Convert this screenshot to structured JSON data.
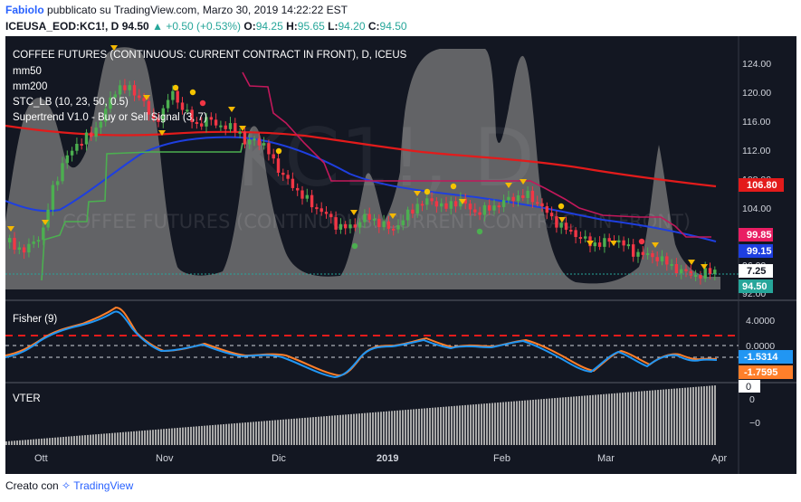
{
  "header": {
    "author": "Fabiolo",
    "published": "pubblicato su TradingView.com, Marzo 30, 2019 14:22:22 EST",
    "symbol": "ICEUSA_EOD:KC1!, D",
    "price": "94.50",
    "change": "+0.50 (+0.53%)",
    "o_label": "O:",
    "o_value": "94.25",
    "h_label": "H:",
    "h_value": "95.65",
    "l_label": "L:",
    "l_value": "94.20",
    "c_label": "C:",
    "c_value": "94.50"
  },
  "legend": {
    "title": "COFFEE FUTURES (CONTINUOUS: CURRENT CONTRACT IN FRONT), D, ICEUS",
    "items": [
      "mm50",
      "mm200",
      "STC_LB (10, 23, 50, 0.5)",
      "Supertrend V1.0 - Buy or Sell Signal (3, 7)"
    ]
  },
  "watermark": {
    "big": "KC1!, D",
    "small": "COFFEE FUTURES (CONTINUOUS: CURRENT CONTRACT IN FRONT)"
  },
  "price_axis": [
    "124.00",
    "120.00",
    "116.00",
    "112.00",
    "108.00",
    "104.00",
    "96.00",
    "92.00"
  ],
  "price_tags": [
    {
      "text": "106.80",
      "bg": "#e31b1b",
      "color": "#ffffff"
    },
    {
      "text": "99.85",
      "bg": "#e91e63",
      "color": "#ffffff"
    },
    {
      "text": "99.15",
      "bg": "#1e3fe0",
      "color": "#ffffff"
    },
    {
      "text": "7.25",
      "bg": "#ffffff",
      "color": "#131722"
    },
    {
      "text": "94.50",
      "bg": "#26a69a",
      "color": "#ffffff"
    }
  ],
  "fisher": {
    "label": "Fisher (9)",
    "axis": [
      "4.0000",
      "0.0000"
    ],
    "tags": [
      {
        "text": "-1.5314",
        "bg": "#2196f3",
        "color": "#ffffff"
      },
      {
        "text": "-1.7595",
        "bg": "#ff7f2a",
        "color": "#ffffff"
      }
    ]
  },
  "histogram": {
    "label": "VTER",
    "axis": [
      "0",
      "−0"
    ],
    "tag": {
      "text": "0",
      "bg": "#ffffff",
      "color": "#131722"
    }
  },
  "time_axis": [
    "Ott",
    "Nov",
    "Dic",
    "2019",
    "Feb",
    "Mar",
    "Apr"
  ],
  "footer": {
    "prefix": "Creato con",
    "brand": "TradingView"
  },
  "colors": {
    "background": "#131722",
    "up_candle": "#4caf50",
    "down_candle": "#f23645",
    "mm50": "#1e3fe0",
    "mm200": "#e31b1b",
    "supertrend_up": "#4caf50",
    "supertrend_down": "#c2185b",
    "stc_area": "#8a8a8a",
    "fisher_main": "#2196f3",
    "fisher_signal": "#ff7f2a"
  }
}
